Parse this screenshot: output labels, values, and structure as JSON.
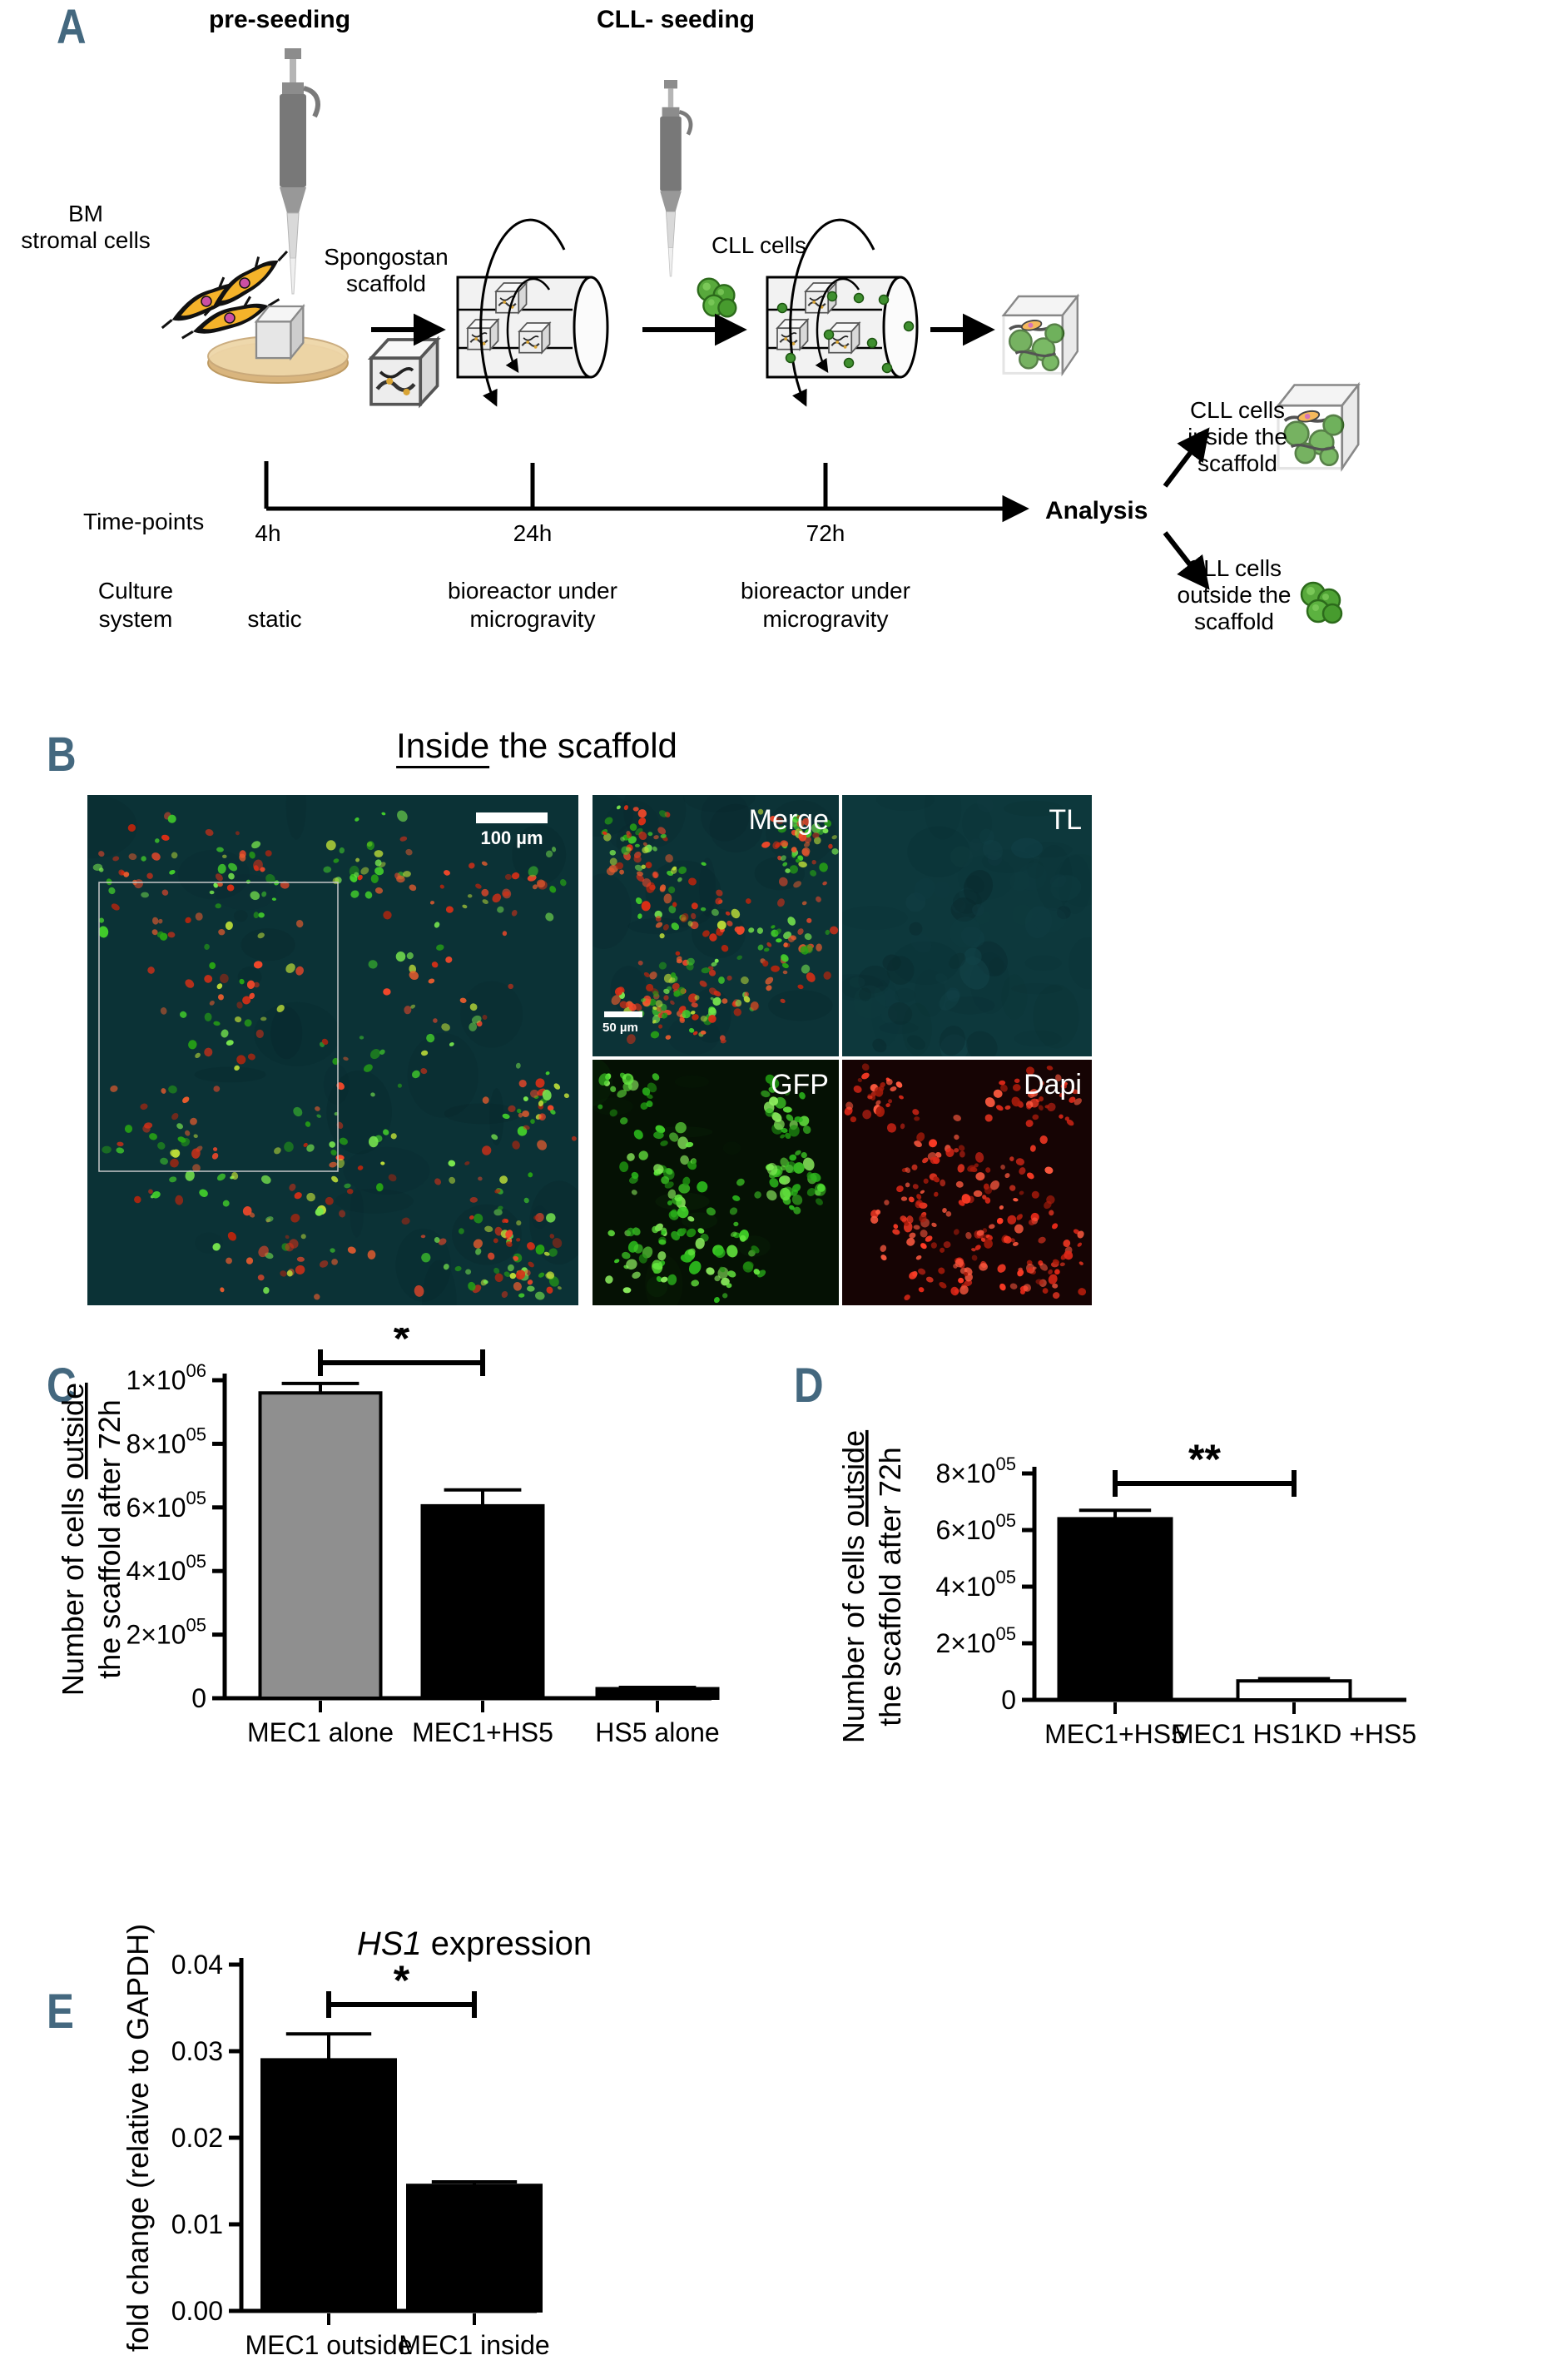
{
  "a": {
    "label": "A",
    "pre_seeding": "pre-seeding",
    "cll_seeding": "CLL- seeding",
    "bm_line1": "BM",
    "bm_line2": "stromal cells",
    "spongostan_line1": "Spongostan",
    "spongostan_line2": "scaffold",
    "cll_cells": "CLL cells",
    "time_points": "Time-points",
    "t1": "4h",
    "t2": "24h",
    "t3": "72h",
    "culture_line1": "Culture",
    "culture_line2": "system",
    "static_label": "static",
    "bio1_line1": "bioreactor under",
    "bio1_line2": "microgravity",
    "bio2_line1": "bioreactor under",
    "bio2_line2": "microgravity",
    "analysis": "Analysis",
    "inside_l1": "CLL cells",
    "inside_l2": "inside the",
    "inside_l3": "scaffold",
    "outside_l1": "CLL cells",
    "outside_l2": "outside the",
    "outside_l3": "scaffold"
  },
  "b": {
    "label": "B",
    "title_underline": "Inside",
    "title_rest": " the scaffold",
    "scalebar_main": "100 µm",
    "scalebar_merge": "50 µm",
    "merge": "Merge",
    "tl": "TL",
    "gfp": "GFP",
    "dapi": "Dapi"
  },
  "c": {
    "label": "C"
  },
  "d": {
    "label": "D"
  },
  "e": {
    "label": "E"
  },
  "colors": {
    "panel_letter": "#44687f",
    "micro_teal": "#0b3236",
    "micro_teal_tl": "#0d383c",
    "micro_black_green": "#051104",
    "micro_black_red": "#160404",
    "micro_red": "#e03520",
    "micro_green": "#46d42e",
    "cll_green": "#58a93c",
    "bar_gray": "#8f8f8f"
  },
  "chart_data": [
    {
      "id": "C",
      "type": "bar",
      "ylabel_lines": [
        "Number of cells outside",
        "the scaffold after 72h"
      ],
      "ylabel_underline_word": "outside",
      "ylim": [
        0,
        1000000
      ],
      "yticks": [
        {
          "value": 0,
          "label": "0"
        },
        {
          "value": 200000,
          "label": "2×10^05"
        },
        {
          "value": 400000,
          "label": "4×10^05"
        },
        {
          "value": 600000,
          "label": "6×10^05"
        },
        {
          "value": 800000,
          "label": "8×10^05"
        },
        {
          "value": 1000000,
          "label": "1×10^06"
        }
      ],
      "categories": [
        "MEC1 alone",
        "MEC1+HS5",
        "HS5 alone"
      ],
      "values": [
        960000,
        605000,
        30000
      ],
      "errors": [
        30000,
        50000,
        4000
      ],
      "bar_colors": [
        "#8f8f8f",
        "#000000",
        "#000000"
      ],
      "significance": {
        "from": 0,
        "to": 1,
        "label": "*"
      }
    },
    {
      "id": "D",
      "type": "bar",
      "ylabel_lines": [
        "Number of cells outside",
        "the scaffold after 72h"
      ],
      "ylabel_underline_word": "outside",
      "ylim": [
        0,
        800000
      ],
      "yticks": [
        {
          "value": 0,
          "label": "0"
        },
        {
          "value": 200000,
          "label": "2×10^05"
        },
        {
          "value": 400000,
          "label": "4×10^05"
        },
        {
          "value": 600000,
          "label": "6×10^05"
        },
        {
          "value": 800000,
          "label": "8×10^05"
        }
      ],
      "categories": [
        "MEC1+HS5",
        "MEC1 HS1KD +HS5"
      ],
      "values": [
        640000,
        67000
      ],
      "errors": [
        30000,
        8000
      ],
      "bar_colors": [
        "#000000",
        "#ffffff"
      ],
      "significance": {
        "from": 0,
        "to": 1,
        "label": "**"
      }
    },
    {
      "id": "E",
      "type": "bar",
      "title_italic": "HS1",
      "title_rest": " expression",
      "ylabel_lines": [
        "fold change (relative to GAPDH)"
      ],
      "ylim": [
        0,
        0.04
      ],
      "yticks": [
        {
          "value": 0,
          "label": "0.00"
        },
        {
          "value": 0.01,
          "label": "0.01"
        },
        {
          "value": 0.02,
          "label": "0.02"
        },
        {
          "value": 0.03,
          "label": "0.03"
        },
        {
          "value": 0.04,
          "label": "0.04"
        }
      ],
      "categories": [
        "MEC1 outside",
        "MEC1 inside"
      ],
      "values": [
        0.029,
        0.0145
      ],
      "errors": [
        0.003,
        0.0004
      ],
      "bar_colors": [
        "#000000",
        "#000000"
      ],
      "significance": {
        "from": 0,
        "to": 1,
        "label": "*"
      }
    }
  ]
}
